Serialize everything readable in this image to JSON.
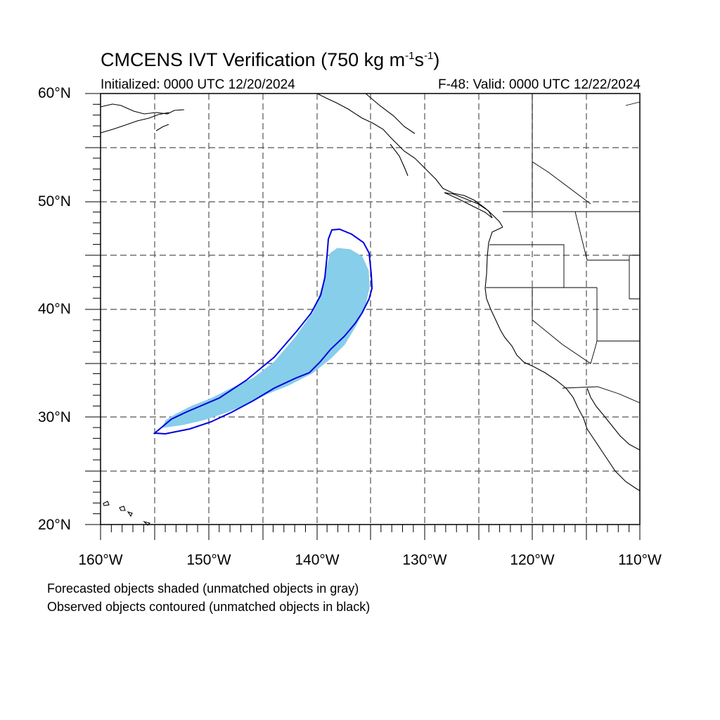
{
  "header": {
    "title_main": "CMCENS IVT Verification (750 kg m",
    "title_exp1": "-1",
    "title_mid": "s",
    "title_exp2": "-1",
    "title_end": ")",
    "initialized": "Initialized: 0000 UTC 12/20/2024",
    "valid": "F-48: Valid: 0000 UTC 12/22/2024"
  },
  "axes": {
    "lat_labels": [
      "60°N",
      "50°N",
      "40°N",
      "30°N",
      "20°N"
    ],
    "lon_labels": [
      "160°W",
      "150°W",
      "140°W",
      "130°W",
      "120°W",
      "110°W"
    ],
    "lat_range": [
      20,
      60
    ],
    "lon_range": [
      -160,
      -110
    ],
    "grid": "dashed every 5 degrees"
  },
  "legend": {
    "line1": "Forecasted objects shaded (unmatched objects in gray)",
    "line2": "Observed objects contoured (unmatched objects in black)"
  },
  "colors": {
    "forecast_fill": "#87CEEB",
    "observed_contour": "#0000E0",
    "coast": "#000000",
    "grid": "#555555"
  }
}
